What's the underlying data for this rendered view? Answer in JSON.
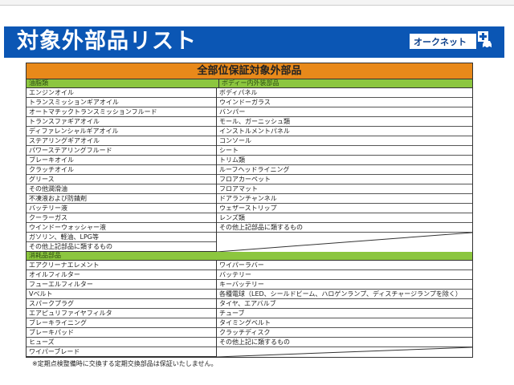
{
  "header": {
    "title": "対象外部品リスト",
    "logo_text": "オークネット",
    "brand_color": "#0b56b4"
  },
  "table": {
    "title": "全部位保証対象外部品",
    "title_color": "#e8891a",
    "section_color": "#8cc63f",
    "section1": {
      "left_heading": "油脂類",
      "right_heading": "ボディー内外装部品",
      "left": [
        "エンジンオイル",
        "トランスミッションギアオイル",
        "オートマチックトランスミッションフルード",
        "トランスファギアオイル",
        "ディファレンシャルギアオイル",
        "ステアリングギアオイル",
        "パワーステアリングフルード",
        "ブレーキオイル",
        "クラッチオイル",
        "グリース",
        "その他潤滑油",
        "不凍液および防錆剤",
        "バッテリー液",
        "クーラーガス",
        "ウインドーウォッシャー液",
        "ガソリン、軽油、LPG等",
        "その他上記部品に類するもの"
      ],
      "right": [
        "ボディパネル",
        "ウインドーガラス",
        "バンパー",
        "モール、ガーニッシュ類",
        "インストルメントパネル",
        "コンソール",
        "シート",
        "トリム類",
        "ルーフヘッドライニング",
        "フロアカーペット",
        "フロアマット",
        "ドアランチャンネル",
        "ウェザーストリップ",
        "レンズ類",
        "その他上記部品に類するもの"
      ]
    },
    "section2": {
      "heading": "消耗品部品",
      "left": [
        "エアクリーナエレメント",
        "オイルフィルター",
        "フューエルフィルター",
        "Vベルト",
        "スパークプラグ",
        "エアピュリファイヤフィルタ",
        "ブレーキライニング",
        "ブレーキパッド",
        "ヒューズ",
        "ワイパーブレード"
      ],
      "right": [
        "ワイパーラバー",
        "バッテリー",
        "キーバッテリー",
        "各種電球（LED、シールドビーム、ハロゲンランプ、ディスチャージランプを除く）",
        "タイヤ、エアバルブ",
        "チューブ",
        "タイミングベルト",
        "クラッチディスク",
        "その他上記に類するもの"
      ]
    }
  },
  "footnote": "※定期点検整備時に交換する定期交換部品は保証いたしません。"
}
